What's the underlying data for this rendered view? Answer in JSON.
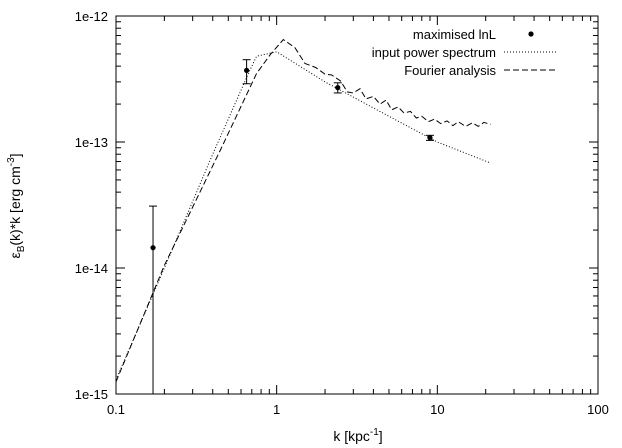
{
  "chart_data": {
    "type": "line",
    "title": "",
    "xlabel": "k [kpc",
    "xlabel_sup": "-1",
    "xlabel_end": "]",
    "ylabel": "ε",
    "ylabel_sub": "B",
    "ylabel_mid": "(k)*k [erg cm",
    "ylabel_sup": "-3",
    "ylabel_end": "]",
    "xscale": "log",
    "yscale": "log",
    "xlim": [
      0.1,
      100
    ],
    "ylim": [
      1e-15,
      1e-12
    ],
    "grid": false,
    "legend_position": "top-right",
    "x_ticks": [
      {
        "value": 0.1,
        "label": "0.1"
      },
      {
        "value": 1,
        "label": "1"
      },
      {
        "value": 10,
        "label": "10"
      },
      {
        "value": 100,
        "label": "100"
      }
    ],
    "y_ticks": [
      {
        "value": 1e-15,
        "label": "1e-15"
      },
      {
        "value": 1e-14,
        "label": "1e-14"
      },
      {
        "value": 1e-13,
        "label": "1e-13"
      },
      {
        "value": 1e-12,
        "label": "1e-12"
      }
    ],
    "series": [
      {
        "name": "maximised lnL",
        "style": "points-errorbars",
        "points": [
          {
            "x": 0.17,
            "y": 1.45e-14,
            "ylow": 1e-15,
            "yhigh": 3.1e-14
          },
          {
            "x": 0.65,
            "y": 3.7e-13,
            "ylow": 2.9e-13,
            "yhigh": 4.5e-13
          },
          {
            "x": 2.4,
            "y": 2.7e-13,
            "ylow": 2.45e-13,
            "yhigh": 2.95e-13
          },
          {
            "x": 9.0,
            "y": 1.08e-13,
            "ylow": 1.03e-13,
            "yhigh": 1.13e-13
          }
        ]
      },
      {
        "name": "input power spectrum",
        "style": "dotted",
        "points": [
          [
            0.1,
            1.3e-15
          ],
          [
            0.2,
            1e-14
          ],
          [
            0.4,
            8e-14
          ],
          [
            0.68,
            3.7e-13
          ],
          [
            0.75,
            4.8e-13
          ],
          [
            1.0,
            5.2e-13
          ],
          [
            2.0,
            3e-13
          ],
          [
            5.0,
            1.6e-13
          ],
          [
            10.0,
            1e-13
          ],
          [
            21.5,
            6.8e-14
          ]
        ]
      },
      {
        "name": "Fourier analysis",
        "style": "dashed",
        "points": [
          [
            0.1,
            1.25e-15
          ],
          [
            0.2,
            1.05e-14
          ],
          [
            0.45,
            8.8e-14
          ],
          [
            0.75,
            3.5e-13
          ],
          [
            0.92,
            5e-13
          ],
          [
            1.1,
            6.5e-13
          ],
          [
            1.3,
            5.6e-13
          ],
          [
            1.5,
            4.2e-13
          ],
          [
            1.75,
            3.9e-13
          ],
          [
            2.0,
            3.45e-13
          ],
          [
            2.2,
            3.4e-13
          ],
          [
            2.5,
            3.05e-13
          ],
          [
            2.75,
            2.5e-13
          ],
          [
            3.0,
            2.45e-13
          ],
          [
            3.3,
            2.65e-13
          ],
          [
            3.6,
            2.2e-13
          ],
          [
            4.0,
            2.3e-13
          ],
          [
            4.4,
            2e-13
          ],
          [
            4.8,
            2.15e-13
          ],
          [
            5.2,
            1.8e-13
          ],
          [
            5.7,
            1.9e-13
          ],
          [
            6.2,
            1.7e-13
          ],
          [
            6.8,
            1.75e-13
          ],
          [
            7.4,
            1.55e-13
          ],
          [
            8.0,
            1.6e-13
          ],
          [
            8.8,
            1.45e-13
          ],
          [
            9.6,
            1.52e-13
          ],
          [
            10.5,
            1.4e-13
          ],
          [
            11.5,
            1.47e-13
          ],
          [
            12.5,
            1.35e-13
          ],
          [
            13.5,
            1.45e-13
          ],
          [
            15.0,
            1.33e-13
          ],
          [
            16.5,
            1.42e-13
          ],
          [
            18.0,
            1.33e-13
          ],
          [
            19.5,
            1.43e-13
          ],
          [
            21.5,
            1.38e-13
          ]
        ]
      }
    ]
  }
}
